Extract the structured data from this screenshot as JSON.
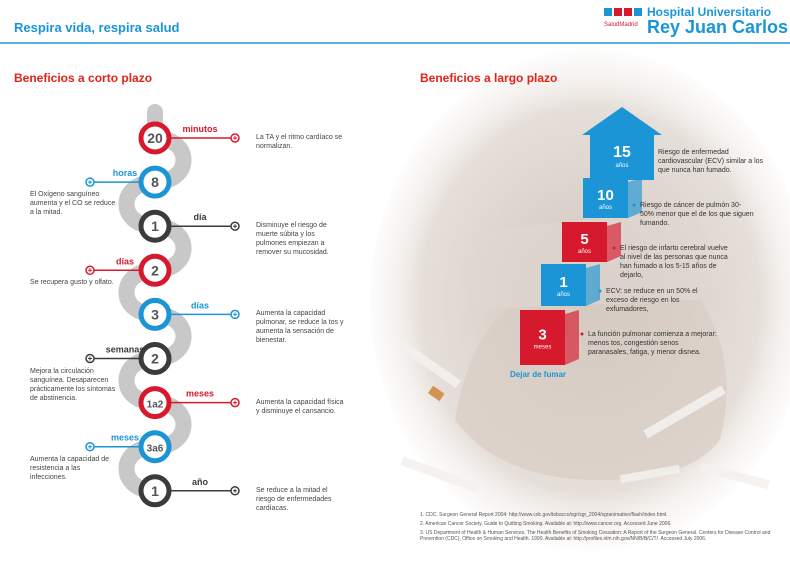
{
  "header": {
    "title": "Respira vida, respira salud",
    "logo_small": "SaludMadrid",
    "logo_line1": "Hospital Universitario",
    "logo_line2": "Rey Juan Carlos"
  },
  "short_term": {
    "title": "Beneficios a corto plazo",
    "items": [
      {
        "number": "20",
        "unit": "minutos",
        "text": "La TA y el ritmo cardíaco se normalizan.",
        "color": "#d7192d"
      },
      {
        "number": "8",
        "unit": "horas",
        "text": "El Oxígeno sanguíneo aumenta y el CO se reduce a la mitad.",
        "color": "#1b95d6"
      },
      {
        "number": "1",
        "unit": "día",
        "text": "Disminuye el riesgo de muerte súbita y los pulmones empiezan a remover su mucosidad.",
        "color": "#3b3b3b"
      },
      {
        "number": "2",
        "unit": "días",
        "text": "Se recupera gusto y olfato.",
        "color": "#d7192d"
      },
      {
        "number": "3",
        "unit": "días",
        "text": "Aumenta la capacidad pulmonar, se reduce la tos y aumenta la sensación de bienestar.",
        "color": "#1b95d6"
      },
      {
        "number": "2",
        "unit": "semanas",
        "text": "Mejora la circulación sanguínea. Desaparecen prácticamente los síntomas de abstinencia.",
        "color": "#3b3b3b"
      },
      {
        "number": "1a2",
        "unit": "meses",
        "text": "Aumenta la capacidad física y disminuye el cansancio.",
        "color": "#d7192d"
      },
      {
        "number": "3a6",
        "unit": "meses",
        "text": "Aumenta la capacidad de resistencia a las infecciones.",
        "color": "#1b95d6"
      },
      {
        "number": "1",
        "unit": "año",
        "text": "Se reduce a la mitad el riesgo de enfermedades cardíacas.",
        "color": "#3b3b3b"
      }
    ]
  },
  "long_term": {
    "title": "Beneficios a largo plazo",
    "start_label": "Dejar de fumar",
    "steps": [
      {
        "number": "3",
        "unit": "meses",
        "text": "La función pulmonar comienza a mejorar: menos tos, congestión senos paranasales, fatiga, y menor disnea.",
        "color": "#d7192d"
      },
      {
        "number": "1",
        "unit": "años",
        "text": "ECV: se reduce en un 50% el exceso de riesgo en los exfumadores,",
        "color": "#1b95d6"
      },
      {
        "number": "5",
        "unit": "años",
        "text": "El riesgo de infarto cerebral vuelve al nivel de las personas que nunca han fumado a los 5-15 años de dejarlo,",
        "color": "#d7192d"
      },
      {
        "number": "10",
        "unit": "años",
        "text": "Riesgo de cáncer de pulmón 30-50% menor que el de los que siguen fumando.",
        "color": "#1b95d6"
      },
      {
        "number": "15",
        "unit": "años",
        "text": "Riesgo de enfermedad cardiovascular (ECV) similar a los que nunca han fumado.",
        "color": "#1b95d6"
      }
    ]
  },
  "references": [
    "1. CDC. Surgeon General Report 2004: http://www.cdc.gov/tobacco/sgr/sgr_2004/sgranimation/flash/index.html.",
    "2. American Cancer Society. Guide to Quitting Smoking. Available at: http://www.cancer.org. Accessed June 2006.",
    "3. US Department of Health & Human Services. The Health Benefits of Smoking Cessation: A Report of the Surgeon General. Centers for Disease Control and Prevention (CDC), Office on Smoking and Health. 1990. Available at: http://profiles.nlm.nih.gov/NN/B/B/C/T/. Accessed July 2006."
  ]
}
